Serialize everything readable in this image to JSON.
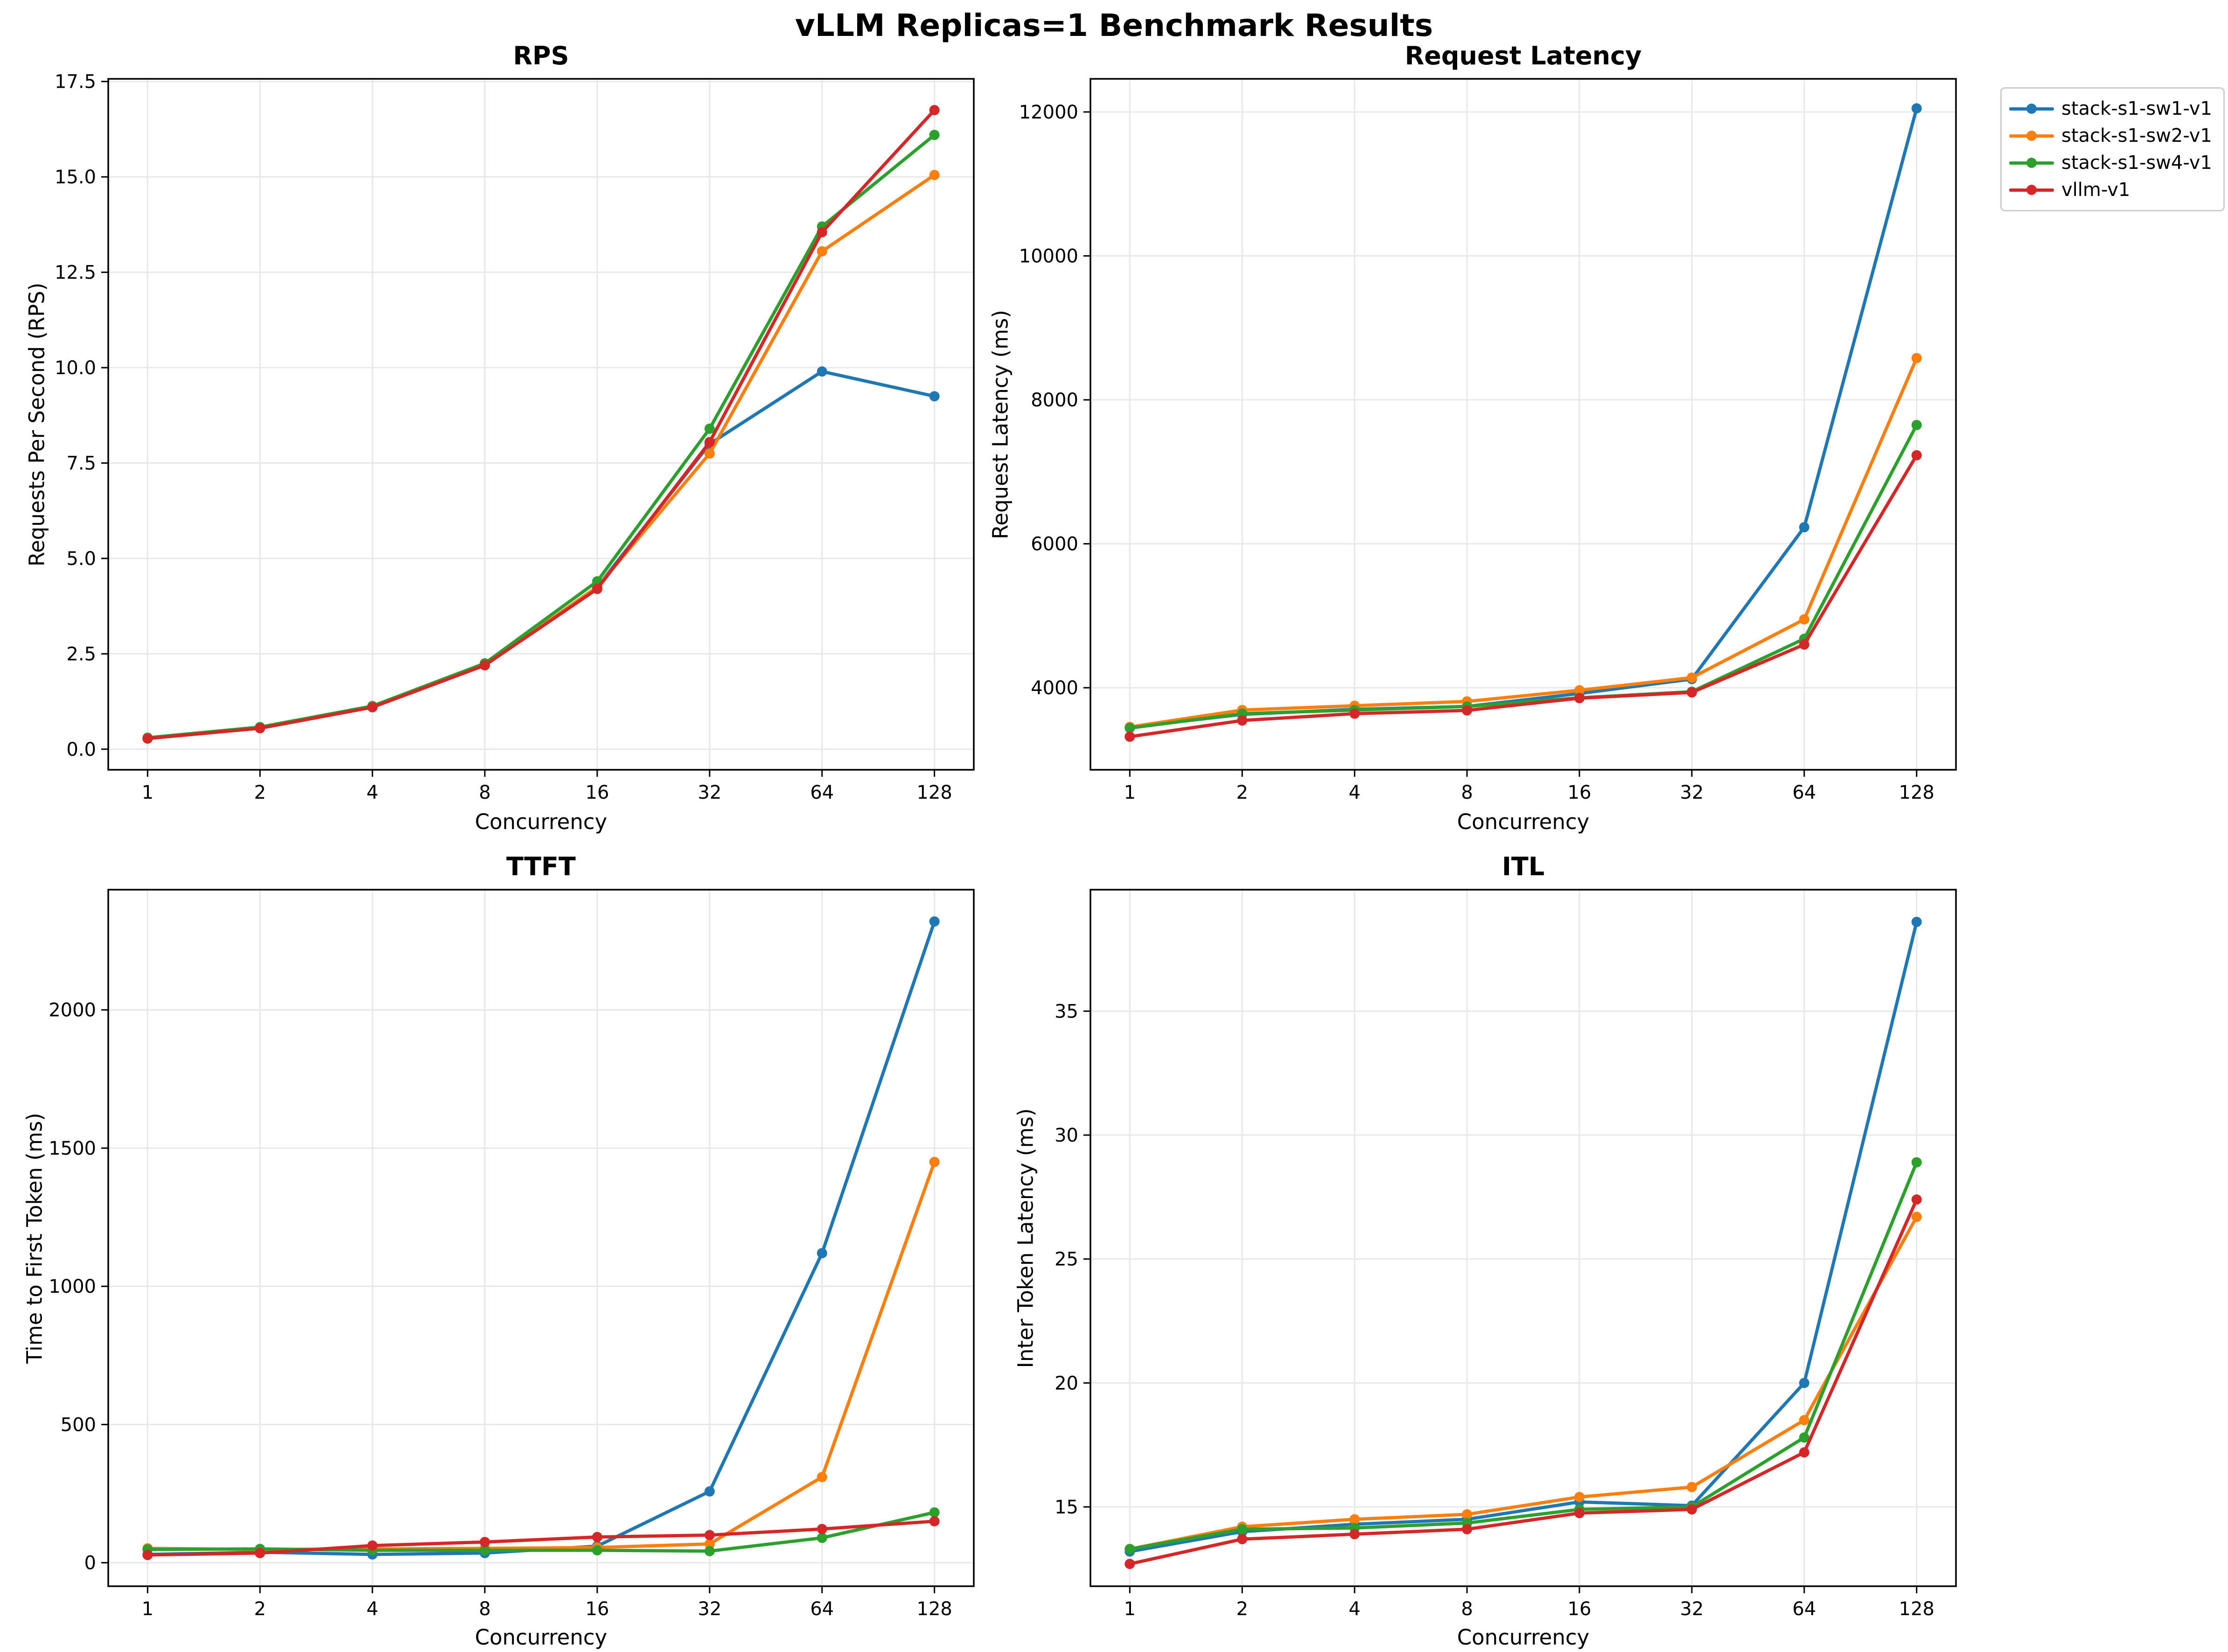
{
  "figure": {
    "suptitle": "vLLM Replicas=1 Benchmark Results"
  },
  "legend": {
    "entries": [
      {
        "label": "stack-s1-sw1-v1",
        "color": "#1f77b4"
      },
      {
        "label": "stack-s1-sw2-v1",
        "color": "#ff7f0e"
      },
      {
        "label": "stack-s1-sw4-v1",
        "color": "#2ca02c"
      },
      {
        "label": "vllm-v1",
        "color": "#d62728"
      }
    ]
  },
  "style": {
    "grid_color": "#e8e8e8",
    "spine_color": "#000000",
    "background": "#ffffff"
  },
  "chart_data": [
    {
      "type": "line",
      "title": "RPS",
      "xlabel": "Concurrency",
      "ylabel": "Requests Per Second (RPS)",
      "xscale": "log2",
      "grid": true,
      "legend_position": "outside-top-right",
      "x_categories": [
        "1",
        "2",
        "4",
        "8",
        "16",
        "32",
        "64",
        "128"
      ],
      "x": [
        1,
        2,
        4,
        8,
        16,
        32,
        64,
        128
      ],
      "ylim": [
        -0.54,
        17.57
      ],
      "yticks": [
        {
          "v": 0,
          "label": "0.0"
        },
        {
          "v": 2.5,
          "label": "2.5"
        },
        {
          "v": 5,
          "label": "5.0"
        },
        {
          "v": 7.5,
          "label": "7.5"
        },
        {
          "v": 10,
          "label": "10.0"
        },
        {
          "v": 12.5,
          "label": "12.5"
        },
        {
          "v": 15,
          "label": "15.0"
        },
        {
          "v": 17.5,
          "label": "17.5"
        }
      ],
      "series": [
        {
          "name": "stack-s1-sw1-v1",
          "color": "#1f77b4",
          "values": [
            0.28,
            0.55,
            1.1,
            2.2,
            4.25,
            8.0,
            9.9,
            9.25
          ]
        },
        {
          "name": "stack-s1-sw2-v1",
          "color": "#ff7f0e",
          "values": [
            0.28,
            0.55,
            1.1,
            2.2,
            4.25,
            7.75,
            13.05,
            15.05
          ]
        },
        {
          "name": "stack-s1-sw4-v1",
          "color": "#2ca02c",
          "values": [
            0.3,
            0.58,
            1.13,
            2.25,
            4.4,
            8.4,
            13.7,
            16.1
          ]
        },
        {
          "name": "vllm-v1",
          "color": "#d62728",
          "values": [
            0.28,
            0.55,
            1.1,
            2.2,
            4.2,
            8.05,
            13.55,
            16.75
          ]
        }
      ]
    },
    {
      "type": "line",
      "title": "Request Latency",
      "xlabel": "Concurrency",
      "ylabel": "Request Latency (ms)",
      "xscale": "log2",
      "grid": true,
      "x_categories": [
        "1",
        "2",
        "4",
        "8",
        "16",
        "32",
        "64",
        "128"
      ],
      "x": [
        1,
        2,
        4,
        8,
        16,
        32,
        64,
        128
      ],
      "ylim": [
        2860,
        12460
      ],
      "yticks": [
        {
          "v": 4000,
          "label": "4000"
        },
        {
          "v": 6000,
          "label": "6000"
        },
        {
          "v": 8000,
          "label": "8000"
        },
        {
          "v": 10000,
          "label": "10000"
        },
        {
          "v": 12000,
          "label": "12000"
        }
      ],
      "series": [
        {
          "name": "stack-s1-sw1-v1",
          "color": "#1f77b4",
          "values": [
            3450,
            3630,
            3700,
            3740,
            3920,
            4120,
            6230,
            12050
          ]
        },
        {
          "name": "stack-s1-sw2-v1",
          "color": "#ff7f0e",
          "values": [
            3455,
            3690,
            3750,
            3810,
            3965,
            4140,
            4950,
            8580
          ]
        },
        {
          "name": "stack-s1-sw4-v1",
          "color": "#2ca02c",
          "values": [
            3440,
            3640,
            3690,
            3740,
            3860,
            3945,
            4680,
            7650
          ]
        },
        {
          "name": "vllm-v1",
          "color": "#d62728",
          "values": [
            3320,
            3545,
            3640,
            3685,
            3855,
            3935,
            4600,
            7230
          ]
        }
      ]
    },
    {
      "type": "line",
      "title": "TTFT",
      "xlabel": "Concurrency",
      "ylabel": "Time to First Token (ms)",
      "xscale": "log2",
      "grid": true,
      "x_categories": [
        "1",
        "2",
        "4",
        "8",
        "16",
        "32",
        "64",
        "128"
      ],
      "x": [
        1,
        2,
        4,
        8,
        16,
        32,
        64,
        128
      ],
      "ylim": [
        -85,
        2435
      ],
      "yticks": [
        {
          "v": 0,
          "label": "0"
        },
        {
          "v": 500,
          "label": "500"
        },
        {
          "v": 1000,
          "label": "1000"
        },
        {
          "v": 1500,
          "label": "1500"
        },
        {
          "v": 2000,
          "label": "2000"
        }
      ],
      "series": [
        {
          "name": "stack-s1-sw1-v1",
          "color": "#1f77b4",
          "values": [
            30,
            38,
            30,
            35,
            60,
            258,
            1120,
            2320
          ]
        },
        {
          "name": "stack-s1-sw2-v1",
          "color": "#ff7f0e",
          "values": [
            52,
            48,
            50,
            52,
            55,
            68,
            310,
            1450
          ]
        },
        {
          "name": "stack-s1-sw4-v1",
          "color": "#2ca02c",
          "values": [
            48,
            50,
            45,
            45,
            45,
            42,
            90,
            182
          ]
        },
        {
          "name": "vllm-v1",
          "color": "#d62728",
          "values": [
            28,
            35,
            62,
            75,
            93,
            100,
            122,
            150
          ]
        }
      ]
    },
    {
      "type": "line",
      "title": "ITL",
      "xlabel": "Concurrency",
      "ylabel": "Inter Token Latency (ms)",
      "xscale": "log2",
      "grid": true,
      "x_categories": [
        "1",
        "2",
        "4",
        "8",
        "16",
        "32",
        "64",
        "128"
      ],
      "x": [
        1,
        2,
        4,
        8,
        16,
        32,
        64,
        128
      ],
      "ylim": [
        11.8,
        39.9
      ],
      "yticks": [
        {
          "v": 15,
          "label": "15"
        },
        {
          "v": 20,
          "label": "20"
        },
        {
          "v": 25,
          "label": "25"
        },
        {
          "v": 30,
          "label": "30"
        },
        {
          "v": 35,
          "label": "35"
        }
      ],
      "series": [
        {
          "name": "stack-s1-sw1-v1",
          "color": "#1f77b4",
          "values": [
            13.2,
            14.0,
            14.3,
            14.5,
            15.2,
            15.05,
            20.0,
            38.6
          ]
        },
        {
          "name": "stack-s1-sw2-v1",
          "color": "#ff7f0e",
          "values": [
            13.3,
            14.2,
            14.5,
            14.7,
            15.4,
            15.8,
            18.5,
            26.7
          ]
        },
        {
          "name": "stack-s1-sw4-v1",
          "color": "#2ca02c",
          "values": [
            13.3,
            14.1,
            14.15,
            14.35,
            14.9,
            15.0,
            17.8,
            28.9
          ]
        },
        {
          "name": "vllm-v1",
          "color": "#d62728",
          "values": [
            12.7,
            13.7,
            13.9,
            14.1,
            14.75,
            14.9,
            17.2,
            27.4
          ]
        }
      ]
    }
  ]
}
